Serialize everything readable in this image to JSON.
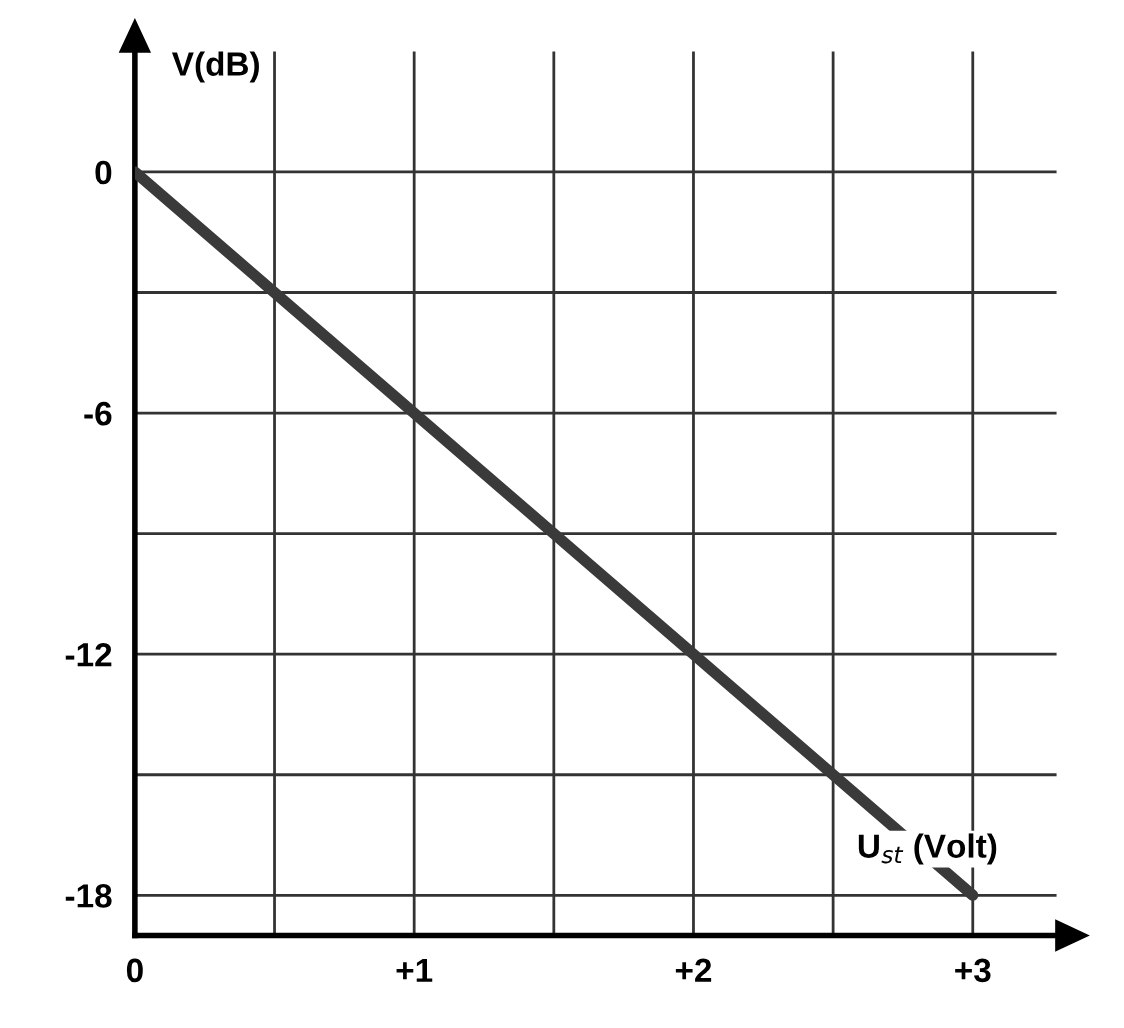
{
  "chart_data": {
    "type": "line",
    "xlabel": "U$_{st}$ (Volt)",
    "ylabel": "V(dB)",
    "x": [
      0,
      3
    ],
    "series": [
      {
        "color": "#3a3a3a",
        "values": [
          0,
          -18
        ]
      }
    ],
    "xlim": [
      0,
      3.3
    ],
    "ylim": [
      -19,
      3
    ],
    "xticks": [
      0,
      {
        "value": 0.5,
        "label": null
      },
      {
        "value": 1,
        "label": "+1"
      },
      {
        "value": 1.5,
        "label": null
      },
      {
        "value": 2,
        "label": "+2"
      },
      {
        "value": 2.5,
        "label": null
      },
      {
        "value": 3,
        "label": "+3"
      }
    ],
    "yticks": [
      -18,
      {
        "value": -15,
        "label": null
      },
      -12,
      {
        "value": -9,
        "label": null
      },
      -6,
      {
        "value": -3,
        "label": null
      },
      0
    ],
    "grid": true,
    "legend": false,
    "marker": "none",
    "line_style": "solid"
  }
}
